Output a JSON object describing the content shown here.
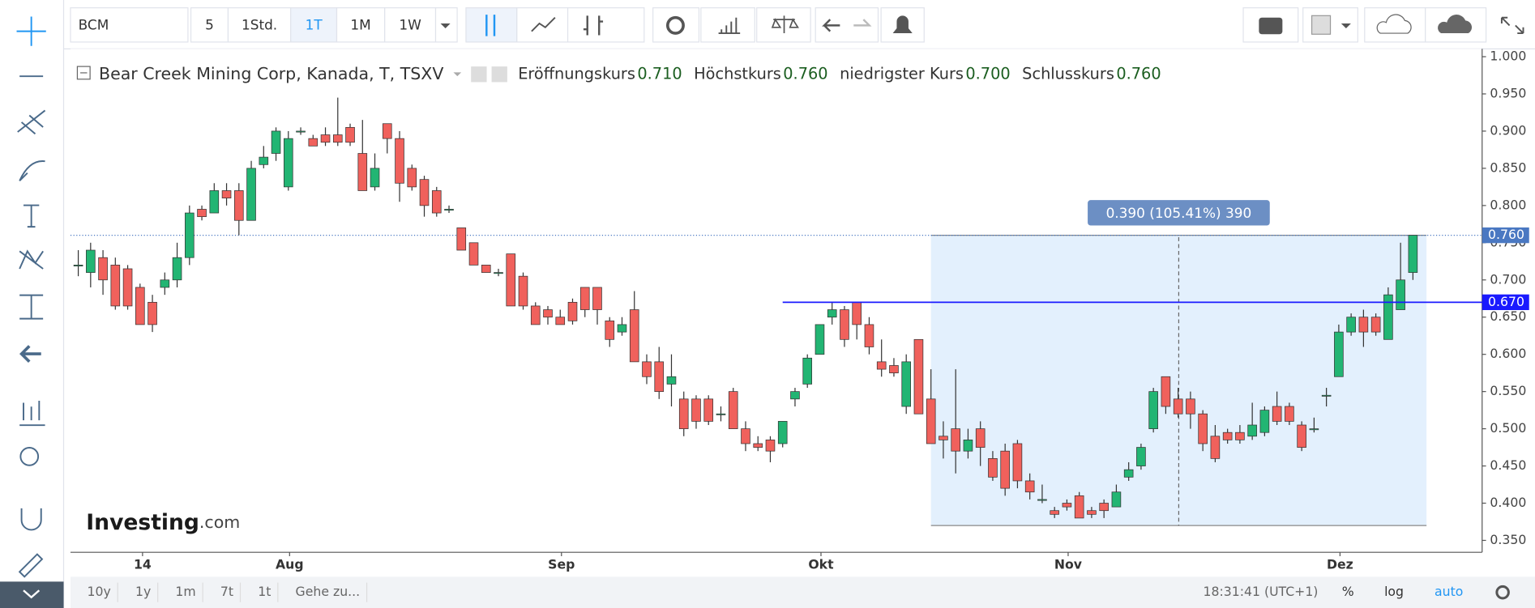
{
  "toolbar": {
    "symbol": "BCM",
    "intervals": [
      "5",
      "1Std.",
      "1T",
      "1M",
      "1W"
    ]
  },
  "legend": {
    "title": "Bear Creek Mining Corp, Kanada, T, TSXV",
    "items": [
      {
        "label": "Eröffnungskurs",
        "value": "0.710"
      },
      {
        "label": "Höchstkurs",
        "value": "0.760"
      },
      {
        "label": "niedrigster Kurs",
        "value": "0.700"
      },
      {
        "label": "Schlusskurs",
        "value": "0.760"
      }
    ]
  },
  "logo": {
    "brand": "Investing",
    "suffix": ".com"
  },
  "chart_data": {
    "type": "candlestick",
    "open": [
      0.72,
      0.71,
      0.73,
      0.72,
      0.715,
      0.69,
      0.67,
      0.69,
      0.7,
      0.73,
      0.795,
      0.79,
      0.82,
      0.82,
      0.78,
      0.855,
      0.87,
      0.825,
      0.9,
      0.89,
      0.895,
      0.895,
      0.905,
      0.87,
      0.825,
      0.91,
      0.89,
      0.85,
      0.835,
      0.82,
      0.795,
      0.77,
      0.75,
      0.72,
      0.71,
      0.735,
      0.705,
      0.665,
      0.66,
      0.65,
      0.67,
      0.69,
      0.69,
      0.645,
      0.63,
      0.66,
      0.59,
      0.59,
      0.56,
      0.54,
      0.54,
      0.54,
      0.52,
      0.55,
      0.5,
      0.48,
      0.485,
      0.48,
      0.54,
      0.56,
      0.6,
      0.65,
      0.66,
      0.67,
      0.64,
      0.59,
      0.585,
      0.53,
      0.62,
      0.54,
      0.49,
      0.5,
      0.47,
      0.5,
      0.46,
      0.47,
      0.48,
      0.43,
      0.405,
      0.39,
      0.4,
      0.41,
      0.39,
      0.4,
      0.395,
      0.435,
      0.45,
      0.5,
      0.57,
      0.54,
      0.54,
      0.52,
      0.49,
      0.495,
      0.495,
      0.49,
      0.495,
      0.53,
      0.53,
      0.505,
      0.5,
      0.545,
      0.57,
      0.63,
      0.65,
      0.65,
      0.62,
      0.66,
      0.71
    ],
    "high": [
      0.74,
      0.75,
      0.74,
      0.73,
      0.72,
      0.695,
      0.68,
      0.71,
      0.75,
      0.8,
      0.8,
      0.83,
      0.83,
      0.83,
      0.86,
      0.88,
      0.905,
      0.9,
      0.905,
      0.895,
      0.905,
      0.945,
      0.91,
      0.915,
      0.87,
      0.91,
      0.9,
      0.855,
      0.84,
      0.825,
      0.8,
      0.77,
      0.75,
      0.72,
      0.715,
      0.735,
      0.71,
      0.67,
      0.665,
      0.66,
      0.675,
      0.69,
      0.69,
      0.65,
      0.65,
      0.685,
      0.6,
      0.61,
      0.6,
      0.55,
      0.545,
      0.545,
      0.53,
      0.555,
      0.51,
      0.49,
      0.49,
      0.51,
      0.555,
      0.6,
      0.64,
      0.67,
      0.665,
      0.67,
      0.65,
      0.62,
      0.595,
      0.6,
      0.62,
      0.58,
      0.51,
      0.58,
      0.5,
      0.51,
      0.47,
      0.48,
      0.485,
      0.44,
      0.425,
      0.395,
      0.405,
      0.415,
      0.395,
      0.405,
      0.425,
      0.455,
      0.48,
      0.555,
      0.57,
      0.555,
      0.55,
      0.525,
      0.505,
      0.5,
      0.505,
      0.535,
      0.53,
      0.55,
      0.535,
      0.51,
      0.515,
      0.555,
      0.64,
      0.655,
      0.66,
      0.655,
      0.69,
      0.75,
      0.76
    ],
    "low": [
      0.705,
      0.69,
      0.68,
      0.66,
      0.66,
      0.64,
      0.63,
      0.68,
      0.69,
      0.72,
      0.78,
      0.79,
      0.8,
      0.76,
      0.78,
      0.85,
      0.86,
      0.82,
      0.895,
      0.88,
      0.88,
      0.88,
      0.88,
      0.82,
      0.82,
      0.87,
      0.805,
      0.82,
      0.785,
      0.785,
      0.79,
      0.74,
      0.72,
      0.71,
      0.705,
      0.665,
      0.66,
      0.64,
      0.64,
      0.64,
      0.64,
      0.65,
      0.64,
      0.61,
      0.625,
      0.59,
      0.56,
      0.54,
      0.53,
      0.49,
      0.5,
      0.505,
      0.51,
      0.5,
      0.47,
      0.47,
      0.455,
      0.475,
      0.53,
      0.555,
      0.6,
      0.64,
      0.61,
      0.62,
      0.6,
      0.57,
      0.57,
      0.52,
      0.52,
      0.48,
      0.46,
      0.44,
      0.46,
      0.45,
      0.43,
      0.41,
      0.42,
      0.405,
      0.4,
      0.38,
      0.39,
      0.38,
      0.38,
      0.38,
      0.395,
      0.43,
      0.445,
      0.495,
      0.52,
      0.515,
      0.5,
      0.47,
      0.455,
      0.48,
      0.48,
      0.485,
      0.49,
      0.505,
      0.505,
      0.47,
      0.495,
      0.53,
      0.57,
      0.625,
      0.61,
      0.625,
      0.62,
      0.66,
      0.7
    ],
    "close": [
      0.72,
      0.74,
      0.7,
      0.665,
      0.665,
      0.64,
      0.64,
      0.7,
      0.73,
      0.79,
      0.785,
      0.82,
      0.81,
      0.78,
      0.85,
      0.865,
      0.9,
      0.89,
      0.9,
      0.88,
      0.885,
      0.885,
      0.885,
      0.82,
      0.85,
      0.89,
      0.83,
      0.825,
      0.8,
      0.79,
      0.795,
      0.74,
      0.72,
      0.71,
      0.71,
      0.665,
      0.665,
      0.64,
      0.65,
      0.64,
      0.645,
      0.66,
      0.66,
      0.62,
      0.64,
      0.59,
      0.57,
      0.55,
      0.57,
      0.5,
      0.51,
      0.51,
      0.52,
      0.5,
      0.48,
      0.475,
      0.47,
      0.51,
      0.55,
      0.595,
      0.64,
      0.66,
      0.62,
      0.64,
      0.61,
      0.58,
      0.575,
      0.59,
      0.52,
      0.48,
      0.485,
      0.47,
      0.485,
      0.475,
      0.435,
      0.42,
      0.43,
      0.415,
      0.405,
      0.385,
      0.395,
      0.38,
      0.385,
      0.39,
      0.415,
      0.445,
      0.475,
      0.55,
      0.53,
      0.52,
      0.52,
      0.48,
      0.46,
      0.485,
      0.485,
      0.505,
      0.525,
      0.51,
      0.51,
      0.475,
      0.5,
      0.545,
      0.63,
      0.65,
      0.63,
      0.63,
      0.68,
      0.7,
      0.76
    ],
    "up_color": "#22b573",
    "down_color": "#f0615c",
    "xlim": [
      -0.63,
      113.6
    ],
    "xticks": [
      {
        "value": 5.2,
        "label": "14"
      },
      {
        "value": 17.1,
        "label": "Aug"
      },
      {
        "value": 39.1,
        "label": "Sep"
      },
      {
        "value": 60.1,
        "label": "Okt"
      },
      {
        "value": 80.1,
        "label": "Nov"
      },
      {
        "value": 102.1,
        "label": "Dez"
      }
    ],
    "ylim": [
      0.334,
      1.0105
    ],
    "yticks": [
      {
        "value": 0.35,
        "label": "0.350"
      },
      {
        "value": 0.4,
        "label": "0.400"
      },
      {
        "value": 0.45,
        "label": "0.450"
      },
      {
        "value": 0.5,
        "label": "0.500"
      },
      {
        "value": 0.55,
        "label": "0.550"
      },
      {
        "value": 0.6,
        "label": "0.600"
      },
      {
        "value": 0.65,
        "label": "0.650"
      },
      {
        "value": 0.7,
        "label": "0.700"
      },
      {
        "value": 0.75,
        "label": "0.750"
      },
      {
        "value": 0.8,
        "label": "0.800"
      },
      {
        "value": 0.85,
        "label": "0.850"
      },
      {
        "value": 0.9,
        "label": "0.900"
      },
      {
        "value": 0.95,
        "label": "0.950"
      },
      {
        "value": 1.0,
        "label": "1.000"
      }
    ],
    "last_price": {
      "value": 0.76,
      "label": "0.760"
    },
    "hline": {
      "value": 0.67,
      "label": "0.670",
      "x_start": 57.0
    },
    "measure": {
      "x": [
        69,
        109.1
      ],
      "y": [
        0.37,
        0.76
      ],
      "label": "0.390 (105.41%) 390"
    }
  },
  "bottom_bar": {
    "ranges": [
      "10y",
      "1y",
      "1m",
      "7t",
      "1t",
      "Gehe zu..."
    ],
    "time": "18:31:41 (UTC+1)",
    "options": [
      "%",
      "log",
      "auto"
    ]
  }
}
